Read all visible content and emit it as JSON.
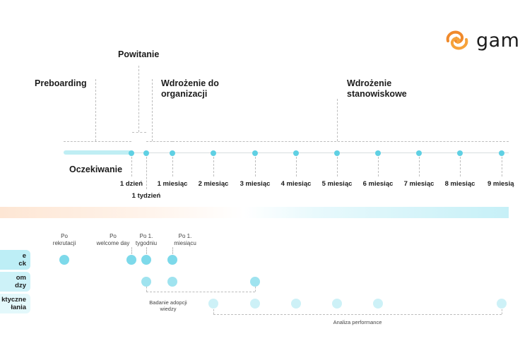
{
  "logo": {
    "text": "gam",
    "icon": "gamfi-swirl-icon",
    "colors": [
      "#f08a2c",
      "#f6c049"
    ]
  },
  "phases": {
    "preboarding": "Preboarding",
    "powitanie": "Powitanie",
    "wdrozenie_org": "Wdrożenie do\norganizacji",
    "wdrozenie_stan": "Wdrożenie\nstanowiskowe",
    "oczekiwanie": "Oczekiwanie"
  },
  "timeline": {
    "ticks": [
      "1 dzień",
      "1 tydzień",
      "1 miesiąc",
      "2 miesiąc",
      "3 miesiąc",
      "4 miesiąc",
      "5 miesiąc",
      "6 miesiąc",
      "7 miesiąc",
      "8 miesiąc",
      "9 miesią"
    ]
  },
  "rows": [
    {
      "label": "e\nck",
      "color": "#bdeef6"
    },
    {
      "label": "om\ndzy",
      "color": "#cdf2f8"
    },
    {
      "label": "ktyczne\nłania",
      "color": "#e3f8fb"
    }
  ],
  "milestones": [
    "Po\nrekrutacji",
    "Po\nwelcome day",
    "Po 1.\ntygodniu",
    "Po 1.\nmiesiącu"
  ],
  "captions": {
    "badanie": "Badanie adopcji\nwiedzy",
    "analiza": "Analiza performance"
  },
  "colors": {
    "accent": "#5fd0e3",
    "bar": "#bfeef4"
  }
}
